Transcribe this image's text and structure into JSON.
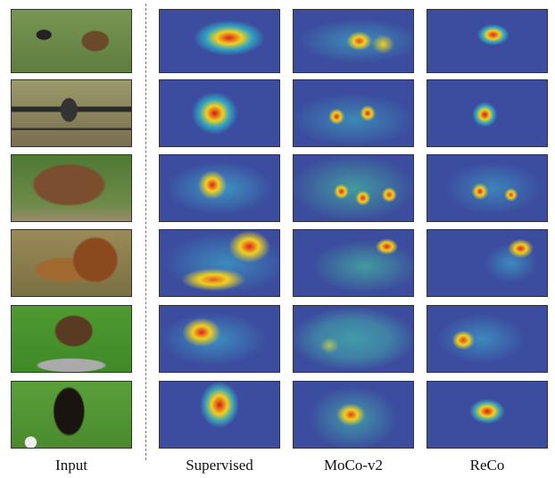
{
  "columns": [
    "Input",
    "Supervised",
    "MoCo-v2",
    "ReCo"
  ]
}
